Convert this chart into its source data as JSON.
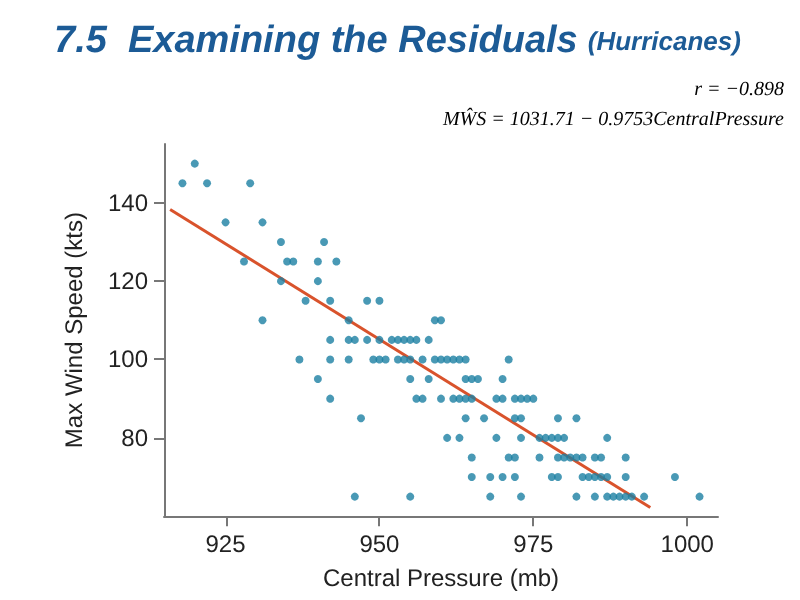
{
  "chart_data": {
    "type": "scatter",
    "title": "7.5  Examining the Residuals",
    "subtitle": "(Hurricanes)",
    "xlabel": "Central Pressure (mb)",
    "ylabel": "Max Wind Speed (kts)",
    "annotations": [
      "r = −0.898",
      "MŴS = 1031.71 − 0.9753CentralPressure"
    ],
    "xlim": [
      915,
      1005
    ],
    "xticks": [
      925,
      950,
      975,
      1000
    ],
    "ylim": [
      60,
      155
    ],
    "yticks": [
      80,
      100,
      120,
      140
    ],
    "grid": false,
    "marker": "circle",
    "series": [
      {
        "color": "#1b7fa3",
        "x": [
          918,
          920,
          922,
          925,
          929,
          928,
          931,
          931,
          934,
          935,
          936,
          934,
          938,
          937,
          940,
          940,
          941,
          943,
          942,
          942,
          942,
          940,
          945,
          959,
          960,
          948,
          950,
          945,
          946,
          948,
          950,
          952,
          953,
          954,
          955,
          956,
          958,
          945,
          949,
          950,
          951,
          953,
          954,
          955,
          957,
          959,
          960,
          961,
          962,
          963,
          964,
          971,
          955,
          958,
          964,
          965,
          966,
          970,
          942,
          956,
          957,
          960,
          962,
          963,
          964,
          965,
          969,
          970,
          972,
          973,
          974,
          975,
          947,
          964,
          967,
          972,
          973,
          979,
          982,
          961,
          963,
          969,
          973,
          976,
          977,
          978,
          979,
          980,
          987,
          965,
          971,
          972,
          976,
          979,
          980,
          981,
          982,
          983,
          985,
          986,
          990,
          965,
          968,
          970,
          972,
          978,
          979,
          983,
          984,
          985,
          986,
          987,
          990,
          998,
          946,
          955,
          968,
          973,
          982,
          985,
          987,
          988,
          989,
          990,
          991,
          993,
          1002
        ],
        "values": [
          145,
          150,
          145,
          135,
          145,
          125,
          135,
          110,
          130,
          125,
          125,
          120,
          115,
          100,
          125,
          120,
          130,
          125,
          115,
          105,
          100,
          95,
          110,
          110,
          110,
          115,
          115,
          105,
          105,
          105,
          105,
          105,
          105,
          105,
          105,
          105,
          105,
          100,
          100,
          100,
          100,
          100,
          100,
          100,
          100,
          100,
          100,
          100,
          100,
          100,
          100,
          100,
          95,
          95,
          95,
          95,
          95,
          95,
          90,
          90,
          90,
          90,
          90,
          90,
          90,
          90,
          90,
          90,
          90,
          90,
          90,
          90,
          85,
          85,
          85,
          85,
          85,
          85,
          85,
          80,
          80,
          80,
          80,
          80,
          80,
          80,
          80,
          80,
          80,
          75,
          75,
          75,
          75,
          75,
          75,
          75,
          75,
          75,
          75,
          75,
          75,
          70,
          70,
          70,
          70,
          70,
          70,
          70,
          70,
          70,
          70,
          70,
          70,
          70,
          65,
          65,
          65,
          65,
          65,
          65,
          65,
          65,
          65,
          65,
          65,
          65,
          65
        ]
      },
      {
        "type": "line",
        "color": "#d9532c",
        "x": [
          916,
          994
        ],
        "values": [
          138.3,
          62.2
        ],
        "marker": "none"
      }
    ]
  }
}
